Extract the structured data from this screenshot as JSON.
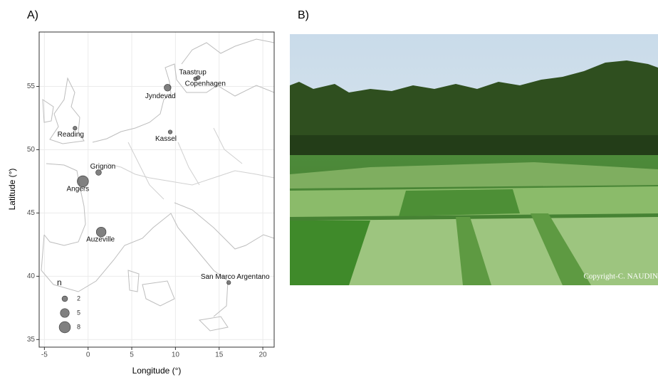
{
  "panel_labels": [
    "A)",
    "B)"
  ],
  "photo": {
    "copyright": "Copyright-C. NAUDIN"
  },
  "chart_data": {
    "type": "scatter",
    "x_label": "Longitude (°)",
    "y_label": "Latitude (°)",
    "labels": [
      "Taastrup",
      "Copenhagen",
      "Jyndevad",
      "Reading",
      "Kassel",
      "Grignon",
      "Angers",
      "Auzeville",
      "San Marco Argentano"
    ],
    "x": [
      12.3,
      12.6,
      9.1,
      -1.5,
      9.4,
      1.2,
      -0.6,
      1.5,
      16.1
    ],
    "y": [
      55.6,
      55.7,
      54.9,
      51.7,
      51.4,
      48.2,
      47.5,
      43.5,
      39.5
    ],
    "sizes": [
      1,
      1,
      3,
      1,
      1,
      2,
      8,
      6,
      1
    ],
    "color": "#555555",
    "xlim": [
      -5.6,
      21.3
    ],
    "ylim": [
      34.4,
      59.3
    ],
    "xticks": [
      -5,
      0,
      5,
      10,
      15,
      20
    ],
    "yticks": [
      35,
      40,
      45,
      50,
      55
    ],
    "grid": true,
    "legend_title": "n",
    "legend_sizes": [
      2,
      5,
      8
    ]
  }
}
